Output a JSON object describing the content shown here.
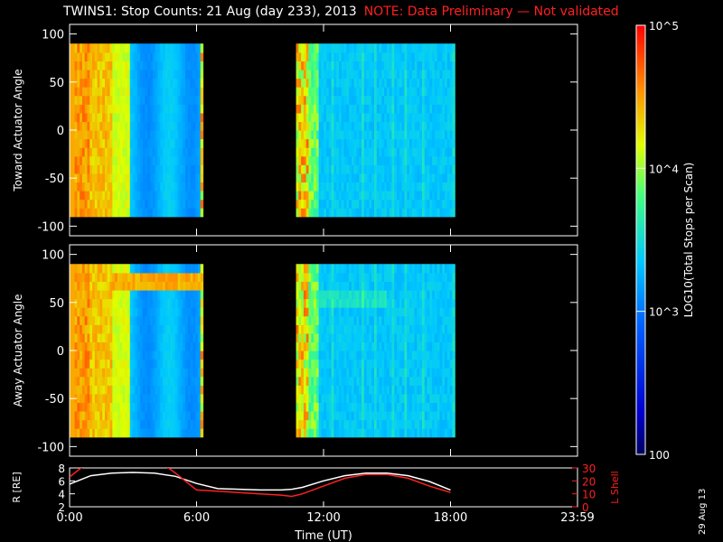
{
  "title": {
    "main": "TWINS1: Stop Counts: 21 Aug (day 233), 2013",
    "note": "NOTE: Data Preliminary — Not validated",
    "note_color": "#ff2020"
  },
  "stamp": "29 Aug 13",
  "chart_data": [
    {
      "type": "heatmap",
      "panel": "toward",
      "ylabel": "Toward Actuator Angle",
      "ylim": [
        -110,
        110
      ],
      "yticks": [
        100,
        50,
        0,
        -50,
        -100
      ],
      "xlim": [
        0,
        24
      ],
      "data_y_range": [
        -90,
        90
      ],
      "coverage_hours": [
        [
          0.0,
          6.3
        ],
        [
          10.7,
          18.2
        ]
      ],
      "description_colors": "orange/red high counts 0:00-3:00, blue/cyan ~1e3 elsewhere"
    },
    {
      "type": "heatmap",
      "panel": "away",
      "ylabel": "Away Actuator Angle",
      "ylim": [
        -110,
        110
      ],
      "yticks": [
        100,
        50,
        0,
        -50,
        -100
      ],
      "xlim": [
        0,
        24
      ],
      "data_y_range": [
        -90,
        90
      ],
      "coverage_hours": [
        [
          0.0,
          6.3
        ],
        [
          10.7,
          18.2
        ]
      ]
    },
    {
      "type": "line",
      "panel": "orbit",
      "xlabel": "Time (UT)",
      "xticks": [
        "0:00",
        "6:00",
        "12:00",
        "18:00",
        "23:59"
      ],
      "xtick_hours": [
        0,
        6,
        12,
        18,
        24
      ],
      "ylabel_left": "R [RE]",
      "ylim_left": [
        2,
        8
      ],
      "yticks_left": [
        2,
        4,
        6,
        8
      ],
      "ylabel_right": "L Shell",
      "ylim_right": [
        0,
        30
      ],
      "yticks_right": [
        0,
        10,
        20,
        30
      ],
      "series": [
        {
          "name": "R [RE]",
          "color": "#ffffff",
          "x": [
            0.0,
            1.0,
            2.0,
            3.0,
            4.0,
            5.0,
            6.0,
            7.0,
            8.0,
            9.0,
            10.0,
            10.5,
            11.0,
            12.0,
            13.0,
            14.0,
            15.0,
            16.0,
            17.0,
            18.0
          ],
          "y": [
            5.5,
            6.8,
            7.2,
            7.3,
            7.2,
            6.7,
            5.6,
            4.8,
            4.7,
            4.6,
            4.6,
            4.7,
            5.0,
            6.0,
            6.8,
            7.2,
            7.2,
            6.8,
            5.9,
            4.6
          ]
        },
        {
          "name": "L Shell",
          "color": "#ff2020",
          "x": [
            0.0,
            0.7,
            1.0,
            4.5,
            5.0,
            6.0,
            7.0,
            8.0,
            9.0,
            10.0,
            10.5,
            11.0,
            12.0,
            13.0,
            14.0,
            15.0,
            16.0,
            17.0,
            18.0
          ],
          "y": [
            23,
            32,
            34,
            32,
            26,
            13,
            12,
            11,
            10,
            9,
            8,
            10,
            16,
            22,
            25,
            25,
            22,
            16,
            11
          ]
        }
      ]
    },
    {
      "type": "colorbar",
      "label": "LOG10(Total Stops per Scan)",
      "scale": "log",
      "range": [
        100,
        100000
      ],
      "ticks": [
        "10^5",
        "10^4",
        "10^3",
        "100"
      ],
      "tick_values": [
        100000,
        10000,
        1000,
        100
      ]
    }
  ]
}
